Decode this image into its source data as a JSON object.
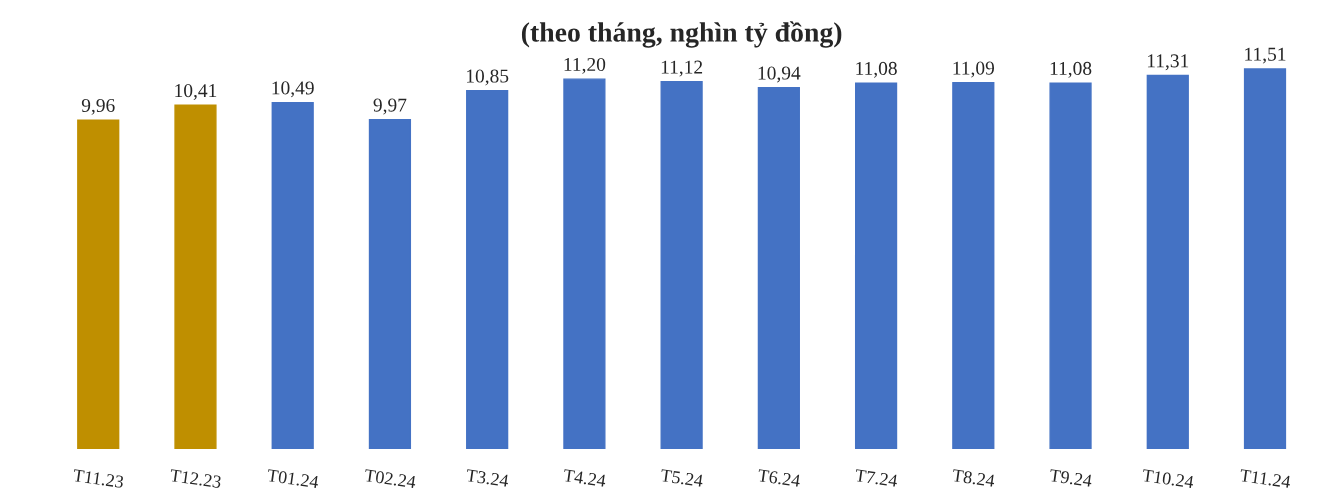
{
  "chart_data": {
    "type": "bar",
    "title": "(theo tháng, nghìn tỷ đồng)",
    "categories": [
      "T11.23",
      "T12.23",
      "T01.24",
      "T02.24",
      "T3.24",
      "T4.24",
      "T5.24",
      "T6.24",
      "T7.24",
      "T8.24",
      "T9.24",
      "T10.24",
      "T11.24"
    ],
    "values": [
      9.96,
      10.41,
      10.49,
      9.97,
      10.85,
      11.2,
      11.12,
      10.94,
      11.08,
      11.09,
      11.08,
      11.31,
      11.51
    ],
    "value_labels": [
      "9,96",
      "10,41",
      "10,49",
      "9,97",
      "10,85",
      "11,20",
      "11,12",
      "10,94",
      "11,08",
      "11,09",
      "11,08",
      "11,31",
      "11,51"
    ],
    "colors": [
      "#bf8f00",
      "#bf8f00",
      "#4472c4",
      "#4472c4",
      "#4472c4",
      "#4472c4",
      "#4472c4",
      "#4472c4",
      "#4472c4",
      "#4472c4",
      "#4472c4",
      "#4472c4",
      "#4472c4"
    ],
    "tick_labels": "x",
    "grid": false,
    "legend": false
  }
}
